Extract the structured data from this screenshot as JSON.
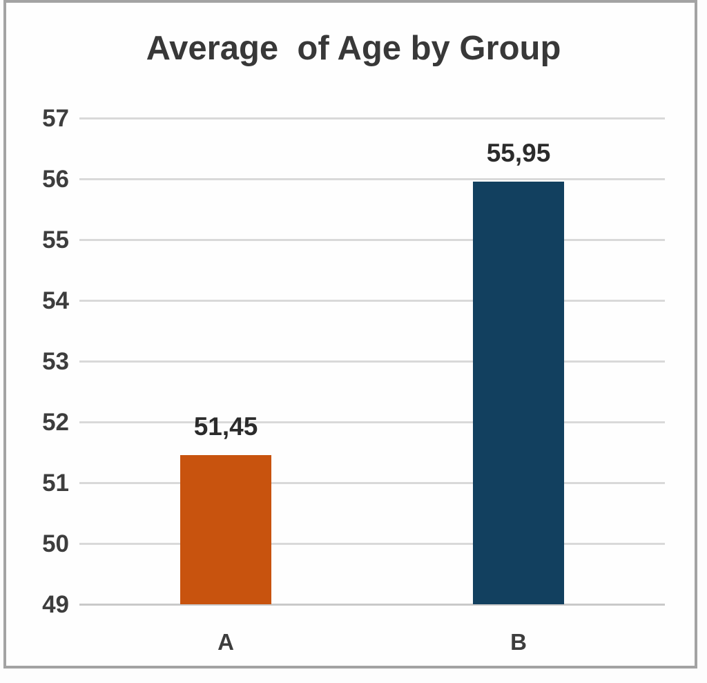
{
  "chart_data": {
    "type": "bar",
    "title": "Average  of Age by Group",
    "categories": [
      "A",
      "B"
    ],
    "values": [
      51.45,
      55.95
    ],
    "value_labels": [
      "51,45",
      "55,95"
    ],
    "bar_colors": [
      "#c8530e",
      "#12405f"
    ],
    "ylim": [
      49,
      57
    ],
    "y_ticks": [
      57,
      56,
      55,
      54,
      53,
      52,
      51,
      50,
      49
    ],
    "xlabel": "",
    "ylabel": "",
    "grid": true,
    "legend": "none",
    "gridline_color": "#d9d9d9",
    "baseline_color": "#c9c9c9",
    "axis_text_color": "#3d3d3d",
    "title_color": "#383838",
    "frame_border_color": "#a3a3a3"
  }
}
